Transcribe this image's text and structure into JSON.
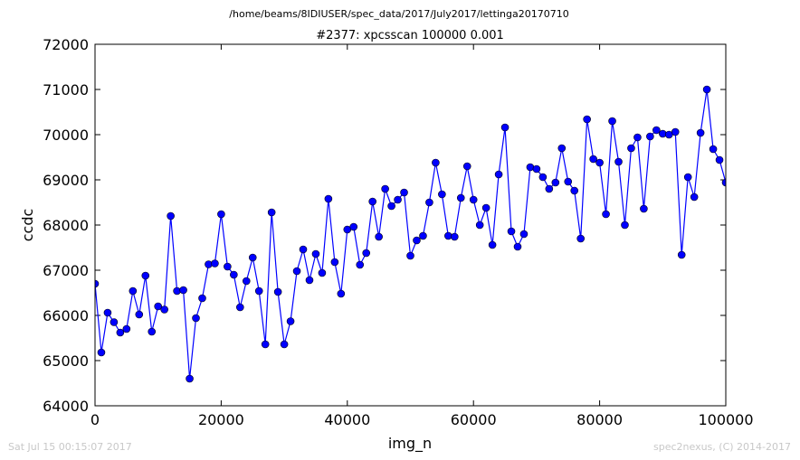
{
  "figure": {
    "suptitle": "/home/beams/8IDIUSER/spec_data/2017/July2017/lettinga20170710",
    "footer_left": "Sat Jul 15 00:15:07 2017",
    "footer_right": "spec2nexus, (C) 2014-2017"
  },
  "chart_data": {
    "type": "line",
    "title": "#2377: xpcsscan 100000 0.001",
    "xlabel": "img_n",
    "ylabel": "ccdc",
    "xlim": [
      0,
      100000
    ],
    "ylim": [
      64000,
      72000
    ],
    "xticks": [
      0,
      20000,
      40000,
      60000,
      80000,
      100000
    ],
    "xtick_labels": [
      "0",
      "20000",
      "40000",
      "60000",
      "80000",
      "100000"
    ],
    "yticks": [
      64000,
      65000,
      66000,
      67000,
      68000,
      69000,
      70000,
      71000,
      72000
    ],
    "ytick_labels": [
      "64000",
      "65000",
      "66000",
      "67000",
      "68000",
      "69000",
      "70000",
      "71000",
      "72000"
    ],
    "grid": false,
    "series": [
      {
        "color": "#0000ff",
        "marker": "circle",
        "x": [
          0,
          1000,
          2000,
          3000,
          4000,
          5000,
          6000,
          7000,
          8000,
          9000,
          10000,
          11000,
          12000,
          13000,
          14000,
          15000,
          16000,
          17000,
          18000,
          19000,
          20000,
          21000,
          22000,
          23000,
          24000,
          25000,
          26000,
          27000,
          28000,
          29000,
          30000,
          31000,
          32000,
          33000,
          34000,
          35000,
          36000,
          37000,
          38000,
          39000,
          40000,
          41000,
          42000,
          43000,
          44000,
          45000,
          46000,
          47000,
          48000,
          49000,
          50000,
          51000,
          52000,
          53000,
          54000,
          55000,
          56000,
          57000,
          58000,
          59000,
          60000,
          61000,
          62000,
          63000,
          64000,
          65000,
          66000,
          67000,
          68000,
          69000,
          70000,
          71000,
          72000,
          73000,
          74000,
          75000,
          76000,
          77000,
          78000,
          79000,
          80000,
          81000,
          82000,
          83000,
          84000,
          85000,
          86000,
          87000,
          88000,
          89000,
          90000,
          91000,
          92000,
          93000,
          94000,
          95000,
          96000,
          97000,
          98000,
          99000,
          100000
        ],
        "y": [
          66700,
          65180,
          66060,
          65850,
          65620,
          65700,
          66540,
          66020,
          66880,
          65640,
          66200,
          66130,
          68200,
          66540,
          66560,
          64600,
          65940,
          66380,
          67130,
          67150,
          68240,
          67080,
          66900,
          66180,
          66760,
          67280,
          66540,
          65360,
          68280,
          66520,
          65360,
          65870,
          66980,
          67460,
          66780,
          67360,
          66940,
          68580,
          67180,
          66480,
          67900,
          67960,
          67120,
          67380,
          68520,
          67740,
          68800,
          68420,
          68560,
          68720,
          67320,
          67660,
          67760,
          68500,
          69380,
          68680,
          67760,
          67740,
          68600,
          69300,
          68560,
          68000,
          68380,
          67560,
          69120,
          70160,
          67860,
          67520,
          67800,
          69280,
          69240,
          69060,
          68800,
          68940,
          69700,
          68960,
          68760,
          67700,
          70340,
          69460,
          69380,
          68240,
          70300,
          69400,
          68000,
          69700,
          69940,
          68360,
          69960,
          70100,
          70020,
          70000,
          70060,
          67340,
          69060,
          68620,
          70040,
          71000,
          69680,
          69440,
          68940
        ]
      }
    ]
  }
}
